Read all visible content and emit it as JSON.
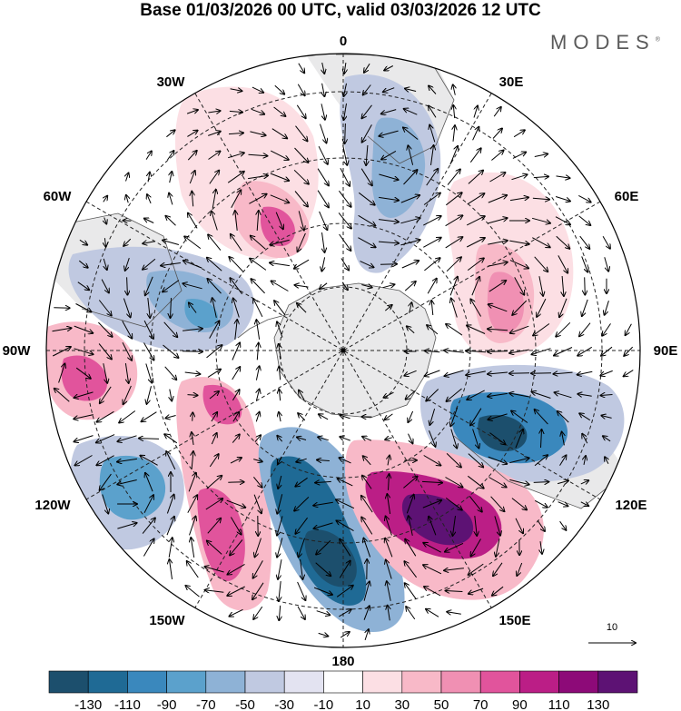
{
  "title": "Base 01/03/2026 00 UTC, valid 03/03/2026 12 UTC",
  "brand": "MODES",
  "brand_mark": "®",
  "longitude_labels": {
    "n0": "0",
    "e30": "30E",
    "e60": "60E",
    "e90": "90E",
    "e120": "120E",
    "e150": "150E",
    "s180": "180",
    "w150": "150W",
    "w120": "120W",
    "w90": "90W",
    "w60": "60W",
    "w30": "30W"
  },
  "reference_vector": {
    "value": "10"
  },
  "colorbar": {
    "colors": [
      "#1c4f6d",
      "#1f6a95",
      "#3a88bd",
      "#5ba1cc",
      "#8eb2d6",
      "#c0c9e1",
      "#e3e3f1",
      "#ffffff",
      "#fcdfe4",
      "#f8b9c8",
      "#f090b3",
      "#e1549c",
      "#bb1e86",
      "#8d0a78",
      "#5d1274"
    ],
    "tick_labels": [
      "-130",
      "-110",
      "-90",
      "-70",
      "-50",
      "-30",
      "-10",
      "10",
      "30",
      "50",
      "70",
      "90",
      "110",
      "130"
    ]
  },
  "land_color": "#e9e9ea"
}
